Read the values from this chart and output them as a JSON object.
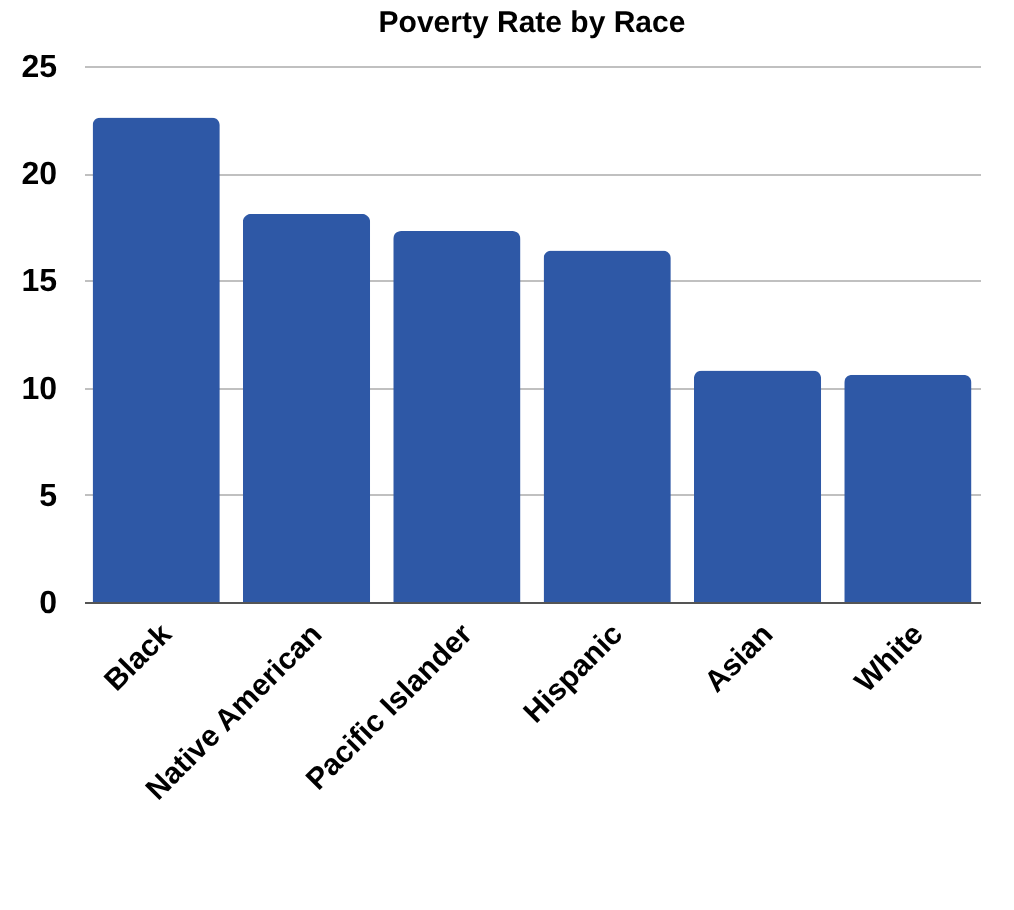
{
  "chart_data": {
    "type": "bar",
    "title": "Poverty Rate by Race",
    "categories": [
      "Black",
      "Native American",
      "Pacific Islander",
      "Hispanic",
      "Asian",
      "White"
    ],
    "values": [
      22.6,
      18.1,
      17.3,
      16.4,
      10.8,
      10.6
    ],
    "color": "#2e58a6",
    "ylim": [
      0,
      25
    ],
    "yticks": [
      0,
      5,
      10,
      15,
      20,
      25
    ],
    "grid": "y"
  }
}
